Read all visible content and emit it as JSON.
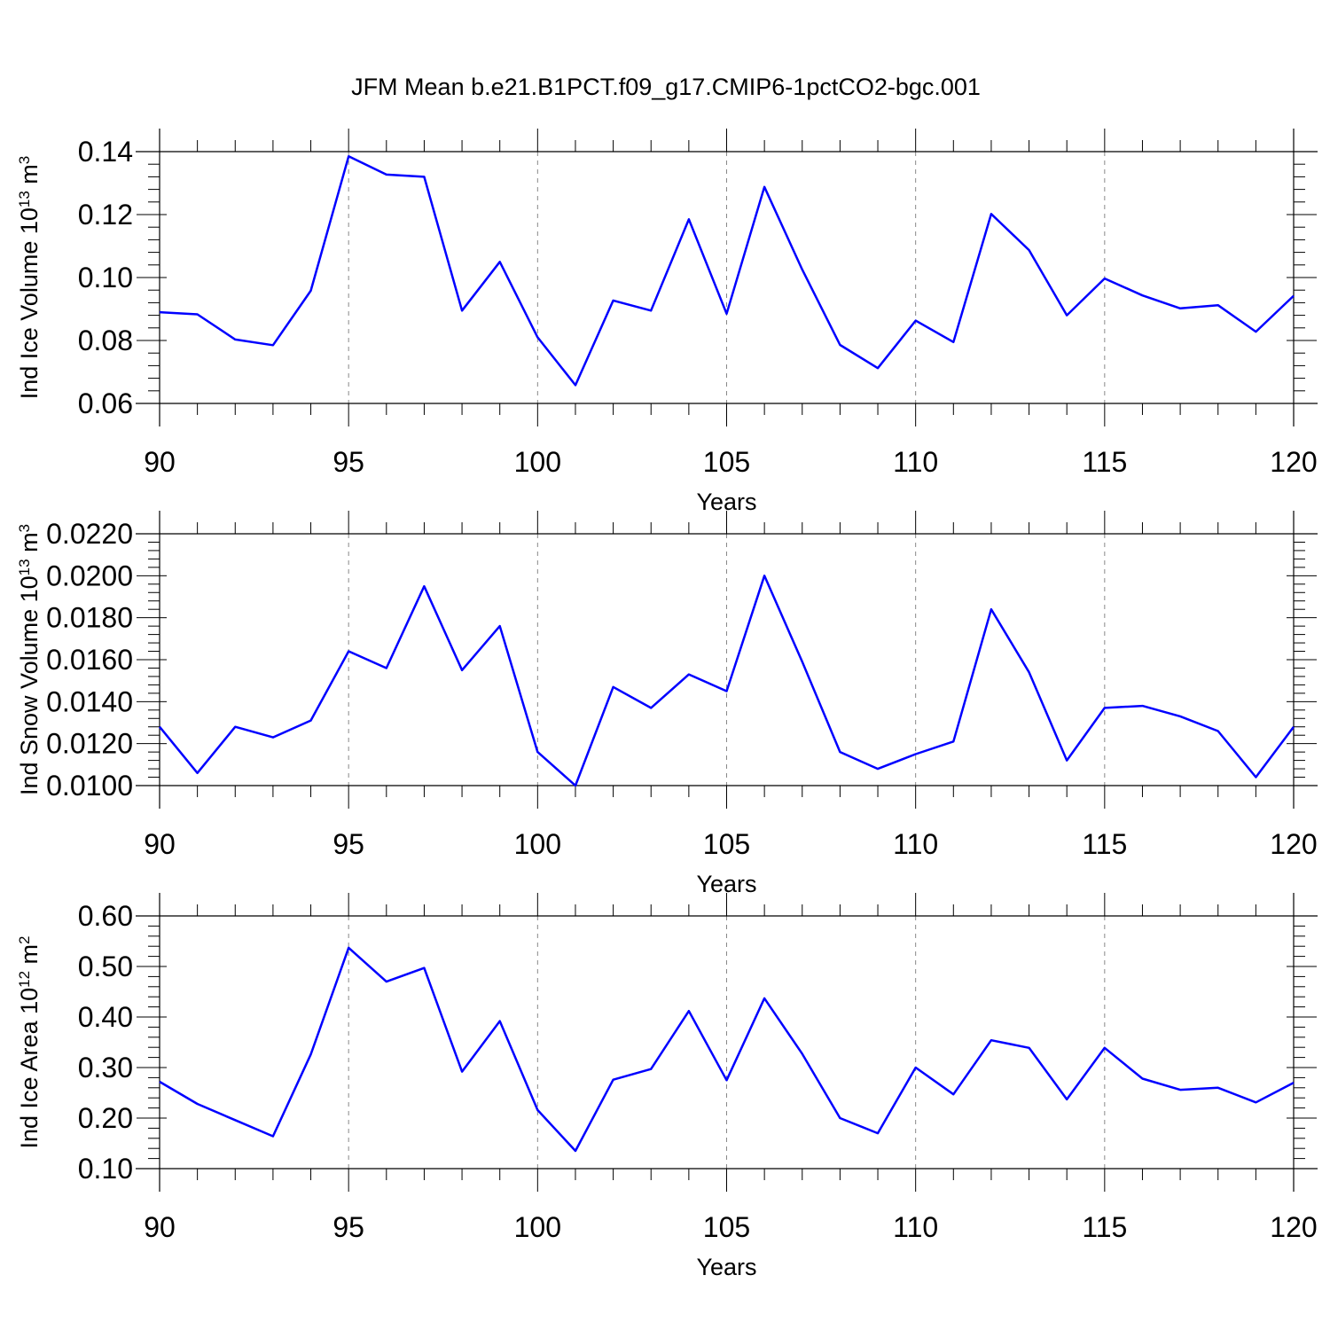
{
  "figure": {
    "title": "JFM Mean b.e21.B1PCT.f09_g17.CMIP6-1pctCO2-bgc.001"
  },
  "colors": {
    "series": "#0000ff",
    "grid": "#888888",
    "axis": "#000000"
  },
  "chart_data": [
    {
      "type": "line",
      "title": "JFM Mean b.e21.B1PCT.f09_g17.CMIP6-1pctCO2-bgc.001",
      "xlabel": "Years",
      "ylabel": {
        "text": "Ind Ice Volume 10",
        "sup": "13",
        "unit": " m",
        "unit_sup": "3"
      },
      "xlim": [
        90,
        120
      ],
      "ylim": [
        0.06,
        0.14
      ],
      "xticks": [
        90,
        95,
        100,
        105,
        110,
        115,
        120
      ],
      "yticks": [
        "0.06",
        "0.08",
        "0.10",
        "0.12",
        "0.14"
      ],
      "grid": "x-dashed",
      "x": [
        90,
        91,
        92,
        93,
        94,
        95,
        96,
        97,
        98,
        99,
        100,
        101,
        102,
        103,
        104,
        105,
        106,
        107,
        108,
        109,
        110,
        111,
        112,
        113,
        114,
        115,
        116,
        117,
        118,
        119,
        120
      ],
      "series": [
        {
          "values": [
            0.089,
            0.0883,
            0.0803,
            0.0785,
            0.0958,
            0.1385,
            0.1327,
            0.132,
            0.0895,
            0.105,
            0.081,
            0.0658,
            0.0927,
            0.0895,
            0.1185,
            0.0885,
            0.1288,
            0.1025,
            0.0786,
            0.0712,
            0.0863,
            0.0795,
            0.1202,
            0.1087,
            0.088,
            0.0997,
            0.0943,
            0.0902,
            0.0912,
            0.0828,
            0.0942
          ]
        }
      ]
    },
    {
      "type": "line",
      "xlabel": "Years",
      "ylabel": {
        "text": "Ind Snow Volume 10",
        "sup": "13",
        "unit": " m",
        "unit_sup": "3"
      },
      "xlim": [
        90,
        120
      ],
      "ylim": [
        0.01,
        0.022
      ],
      "xticks": [
        90,
        95,
        100,
        105,
        110,
        115,
        120
      ],
      "yticks": [
        "0.0100",
        "0.0120",
        "0.0140",
        "0.0160",
        "0.0180",
        "0.0200",
        "0.0220"
      ],
      "grid": "x-dashed",
      "x": [
        90,
        91,
        92,
        93,
        94,
        95,
        96,
        97,
        98,
        99,
        100,
        101,
        102,
        103,
        104,
        105,
        106,
        107,
        108,
        109,
        110,
        111,
        112,
        113,
        114,
        115,
        116,
        117,
        118,
        119,
        120
      ],
      "series": [
        {
          "values": [
            0.0128,
            0.0106,
            0.0128,
            0.0123,
            0.0131,
            0.0164,
            0.0156,
            0.0195,
            0.0155,
            0.0176,
            0.0116,
            0.01,
            0.0147,
            0.0137,
            0.0153,
            0.0145,
            0.02,
            0.0159,
            0.0116,
            0.0108,
            0.0115,
            0.0121,
            0.0184,
            0.0154,
            0.0112,
            0.0137,
            0.0138,
            0.0133,
            0.0126,
            0.0104,
            0.0128
          ]
        }
      ]
    },
    {
      "type": "line",
      "xlabel": "Years",
      "ylabel": {
        "text": "Ind Ice Area 10",
        "sup": "12",
        "unit": " m",
        "unit_sup": "2"
      },
      "xlim": [
        90,
        120
      ],
      "ylim": [
        0.1,
        0.6
      ],
      "xticks": [
        90,
        95,
        100,
        105,
        110,
        115,
        120
      ],
      "yticks": [
        "0.10",
        "0.20",
        "0.30",
        "0.40",
        "0.50",
        "0.60"
      ],
      "grid": "x-dashed",
      "x": [
        90,
        91,
        92,
        93,
        94,
        95,
        96,
        97,
        98,
        99,
        100,
        101,
        102,
        103,
        104,
        105,
        106,
        107,
        108,
        109,
        110,
        111,
        112,
        113,
        114,
        115,
        116,
        117,
        118,
        119,
        120
      ],
      "series": [
        {
          "values": [
            0.272,
            0.228,
            0.196,
            0.164,
            0.326,
            0.537,
            0.47,
            0.497,
            0.292,
            0.392,
            0.216,
            0.135,
            0.276,
            0.297,
            0.412,
            0.275,
            0.437,
            0.327,
            0.2,
            0.17,
            0.3,
            0.247,
            0.354,
            0.339,
            0.237,
            0.339,
            0.278,
            0.256,
            0.26,
            0.231,
            0.27
          ]
        }
      ]
    }
  ]
}
